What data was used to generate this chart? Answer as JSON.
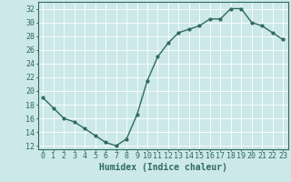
{
  "x": [
    0,
    1,
    2,
    3,
    4,
    5,
    6,
    7,
    8,
    9,
    10,
    11,
    12,
    13,
    14,
    15,
    16,
    17,
    18,
    19,
    20,
    21,
    22,
    23
  ],
  "y": [
    19,
    17.5,
    16,
    15.5,
    14.5,
    13.5,
    12.5,
    12,
    13,
    16.5,
    21.5,
    25,
    27,
    28.5,
    29,
    29.5,
    30.5,
    30.5,
    32,
    32,
    30,
    29.5,
    28.5,
    27.5
  ],
  "line_color": "#2e6b5e",
  "marker": "o",
  "marker_size": 2.0,
  "bg_color": "#cce8e8",
  "grid_color": "#ffffff",
  "tick_color": "#2e6b5e",
  "label_color": "#2e6b5e",
  "xlabel": "Humidex (Indice chaleur)",
  "ylim": [
    11.5,
    33.0
  ],
  "xlim": [
    -0.5,
    23.5
  ],
  "yticks": [
    12,
    14,
    16,
    18,
    20,
    22,
    24,
    26,
    28,
    30,
    32
  ],
  "xticks": [
    0,
    1,
    2,
    3,
    4,
    5,
    6,
    7,
    8,
    9,
    10,
    11,
    12,
    13,
    14,
    15,
    16,
    17,
    18,
    19,
    20,
    21,
    22,
    23
  ],
  "xlabel_fontsize": 7,
  "tick_fontsize": 6,
  "line_width": 1.0
}
